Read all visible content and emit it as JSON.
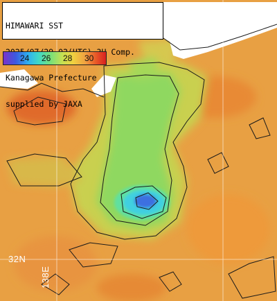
{
  "caption": {
    "lines": [
      "HIMAWARI SST",
      "2025/07/29 02(UTC) 3H Comp.",
      "Kanagawa Prefecture",
      "supplied by JAXA"
    ]
  },
  "colorbar": {
    "ticks": [
      "24",
      "26",
      "28",
      "30"
    ]
  },
  "grid_labels": {
    "latitude": "32N",
    "longitude": "138E"
  },
  "colors": {
    "warm_sea": "#e59a3d",
    "cool_core": "#3fd0e0",
    "land": "#ffffff",
    "contour": "#1a1a1a"
  }
}
